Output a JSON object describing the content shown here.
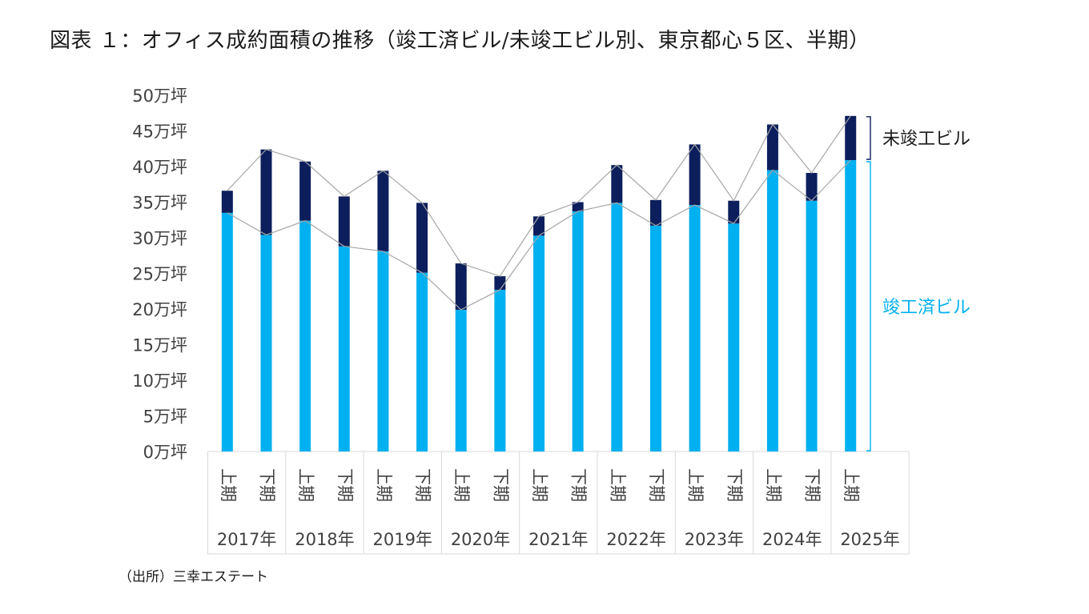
{
  "title": "図表 １：オフィス成約面積の推移（竣工済ビル/未竣工ビル別、東京都心５区、半期）",
  "source": "（出所）三幸エステート",
  "chart_data": {
    "type": "bar",
    "stacked": true,
    "y_tick_labels": [
      "0万坪",
      "5万坪",
      "10万坪",
      "15万坪",
      "20万坪",
      "25万坪",
      "30万坪",
      "35万坪",
      "40万坪",
      "45万坪",
      "50万坪"
    ],
    "ylim": [
      0,
      50
    ],
    "grid": false,
    "categories": [
      "上期",
      "下期",
      "上期",
      "下期",
      "上期",
      "下期",
      "上期",
      "下期",
      "上期",
      "下期",
      "上期",
      "下期",
      "上期",
      "下期",
      "上期",
      "下期",
      "上期"
    ],
    "years": [
      "2017年",
      "2018年",
      "2019年",
      "2020年",
      "2021年",
      "2022年",
      "2023年",
      "2024年",
      "2025年"
    ],
    "series": [
      {
        "name": "竣工済ビル",
        "color": "#00b0f0",
        "values": [
          33.5,
          30.4,
          32.4,
          28.8,
          28.1,
          25.1,
          19.9,
          22.7,
          30.3,
          33.7,
          34.9,
          31.7,
          34.6,
          32.0,
          39.5,
          35.2,
          40.9
        ]
      },
      {
        "name": "未竣工ビル",
        "color": "#0c1f5c",
        "values": [
          3.1,
          12.0,
          8.3,
          7.0,
          11.3,
          9.8,
          6.5,
          1.9,
          2.7,
          1.3,
          5.3,
          3.6,
          8.5,
          3.2,
          6.4,
          3.9,
          6.2
        ]
      }
    ],
    "connector_color": "#a6a6a6",
    "bracket_color": "#0c1f5c",
    "bracket_color_done": "#00b0f0"
  }
}
